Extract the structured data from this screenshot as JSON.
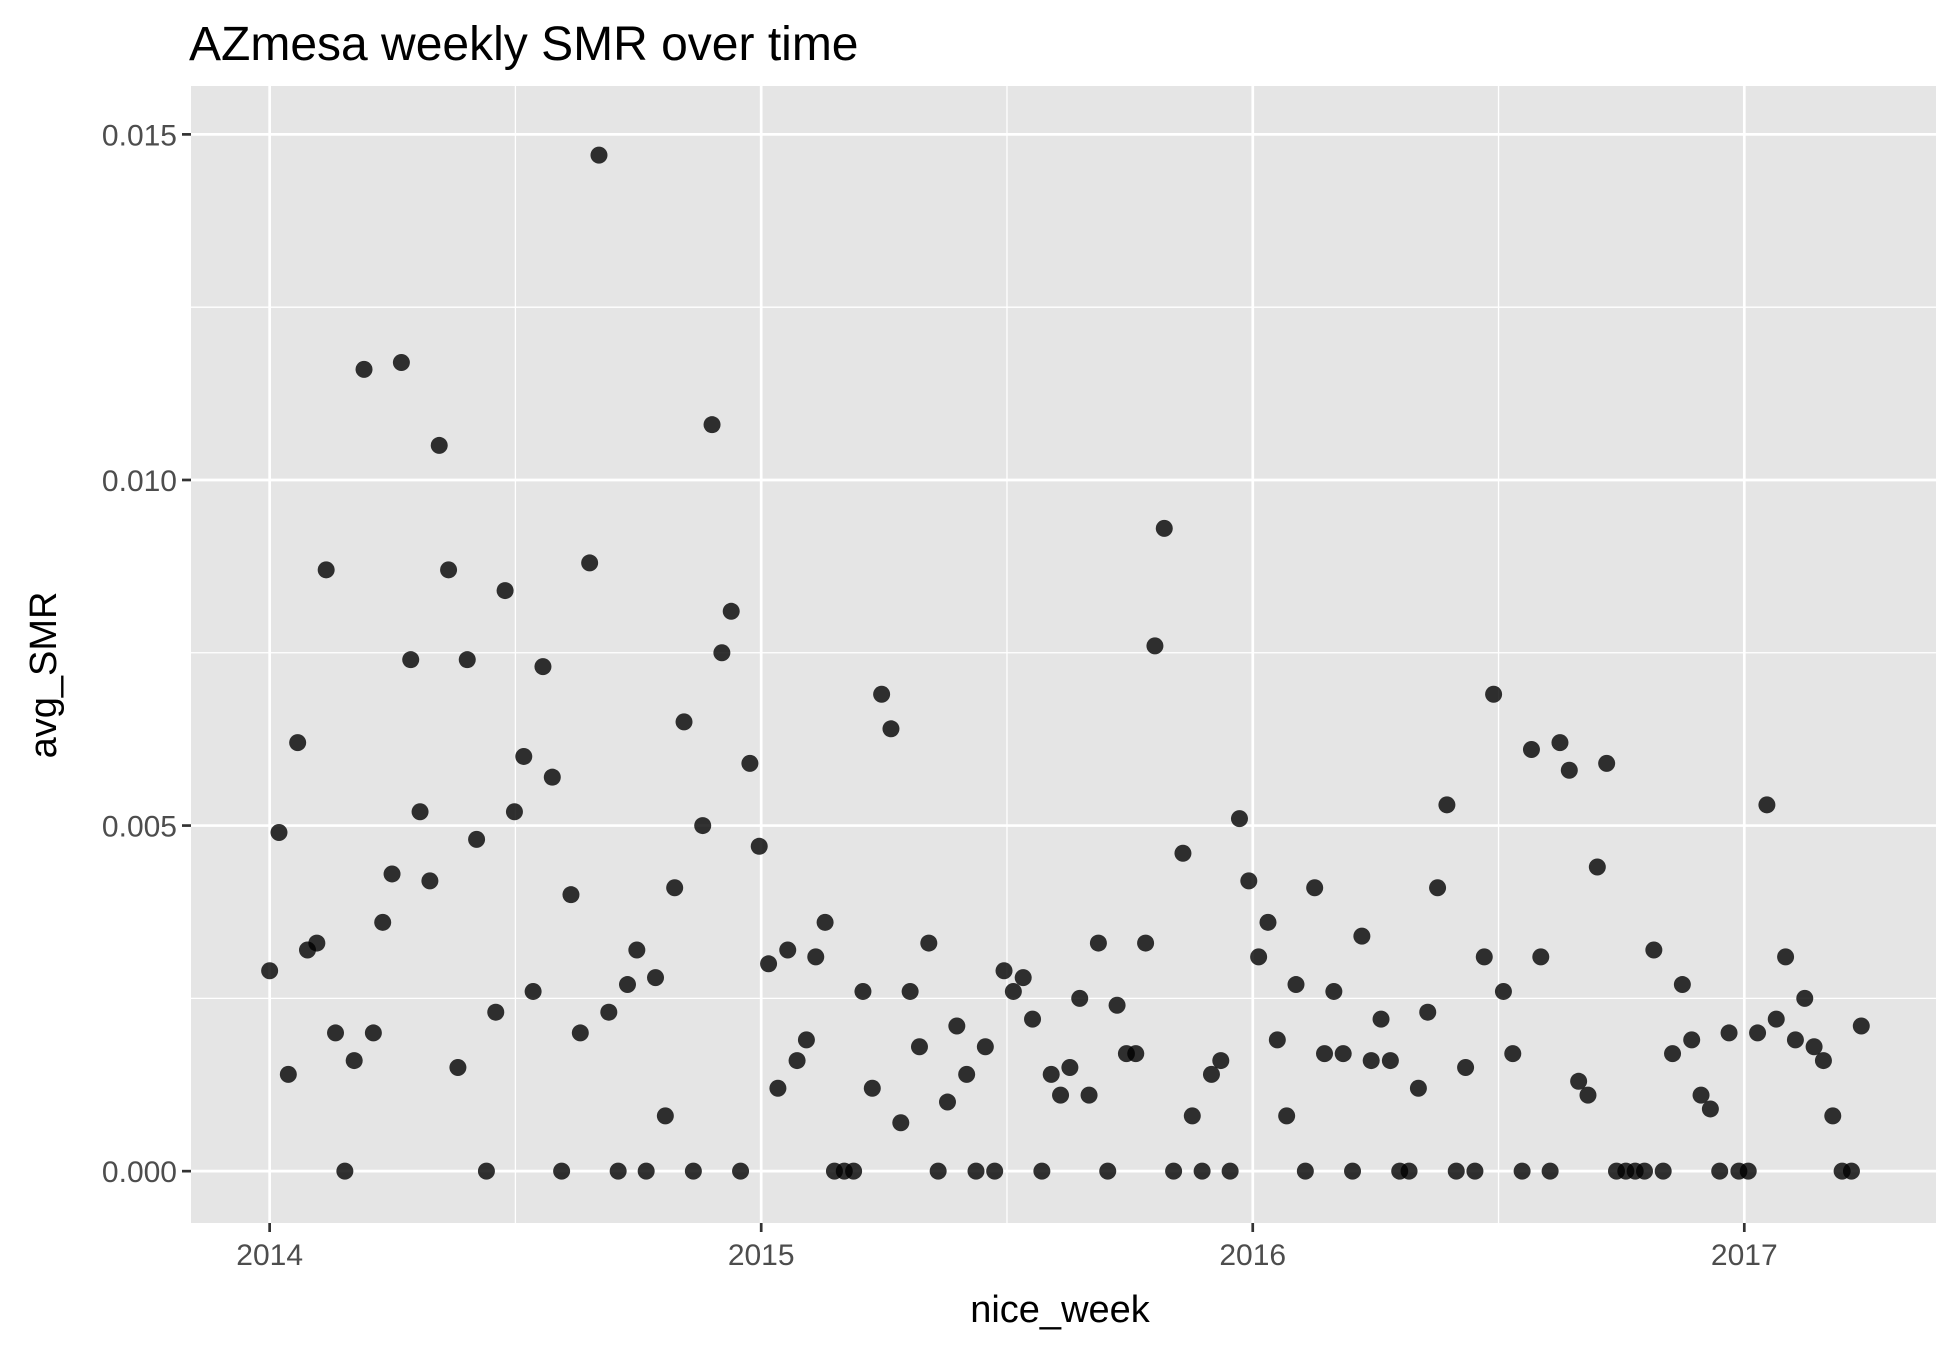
{
  "chart_data": {
    "type": "scatter",
    "title": "AZmesa weekly SMR over time",
    "xlabel": "nice_week",
    "ylabel": "avg_SMR",
    "x_ticks": [
      "2014",
      "2015",
      "2016",
      "2017"
    ],
    "y_ticks": [
      "0.000",
      "0.005",
      "0.010",
      "0.015"
    ],
    "xlim": [
      2013.84,
      2017.39
    ],
    "ylim": [
      -0.00075,
      0.0157
    ],
    "grid": true,
    "point_color": "#000000",
    "panel_background": "#e5e5e5",
    "points": [
      [
        2014.0,
        0.0029
      ],
      [
        2014.019,
        0.0049
      ],
      [
        2014.038,
        0.0014
      ],
      [
        2014.057,
        0.0062
      ],
      [
        2014.077,
        0.0032
      ],
      [
        2014.096,
        0.0033
      ],
      [
        2014.115,
        0.0087
      ],
      [
        2014.134,
        0.002
      ],
      [
        2014.153,
        0.0
      ],
      [
        2014.172,
        0.0016
      ],
      [
        2014.192,
        0.0116
      ],
      [
        2014.211,
        0.002
      ],
      [
        2014.23,
        0.0036
      ],
      [
        2014.249,
        0.0043
      ],
      [
        2014.268,
        0.0117
      ],
      [
        2014.287,
        0.0074
      ],
      [
        2014.306,
        0.0052
      ],
      [
        2014.326,
        0.0042
      ],
      [
        2014.345,
        0.0105
      ],
      [
        2014.364,
        0.0087
      ],
      [
        2014.383,
        0.0015
      ],
      [
        2014.402,
        0.0074
      ],
      [
        2014.421,
        0.0048
      ],
      [
        2014.441,
        0.0
      ],
      [
        2014.46,
        0.0023
      ],
      [
        2014.479,
        0.0084
      ],
      [
        2014.498,
        0.0052
      ],
      [
        2014.517,
        0.006
      ],
      [
        2014.536,
        0.0026
      ],
      [
        2014.556,
        0.0073
      ],
      [
        2014.575,
        0.0057
      ],
      [
        2014.594,
        0.0
      ],
      [
        2014.613,
        0.004
      ],
      [
        2014.632,
        0.002
      ],
      [
        2014.651,
        0.0088
      ],
      [
        2014.67,
        0.0147
      ],
      [
        2014.69,
        0.0023
      ],
      [
        2014.709,
        0.0
      ],
      [
        2014.728,
        0.0027
      ],
      [
        2014.747,
        0.0032
      ],
      [
        2014.766,
        0.0
      ],
      [
        2014.785,
        0.0028
      ],
      [
        2014.805,
        0.0008
      ],
      [
        2014.824,
        0.0041
      ],
      [
        2014.843,
        0.0065
      ],
      [
        2014.862,
        0.0
      ],
      [
        2014.881,
        0.005
      ],
      [
        2014.9,
        0.0108
      ],
      [
        2014.92,
        0.0075
      ],
      [
        2014.939,
        0.0081
      ],
      [
        2014.958,
        0.0
      ],
      [
        2014.977,
        0.0059
      ],
      [
        2014.996,
        0.0047
      ],
      [
        2015.015,
        0.003
      ],
      [
        2015.034,
        0.0012
      ],
      [
        2015.054,
        0.0032
      ],
      [
        2015.073,
        0.0016
      ],
      [
        2015.092,
        0.0019
      ],
      [
        2015.111,
        0.0031
      ],
      [
        2015.13,
        0.0036
      ],
      [
        2015.149,
        0.0
      ],
      [
        2015.169,
        0.0
      ],
      [
        2015.188,
        0.0
      ],
      [
        2015.207,
        0.0026
      ],
      [
        2015.226,
        0.0012
      ],
      [
        2015.245,
        0.0069
      ],
      [
        2015.264,
        0.0064
      ],
      [
        2015.284,
        0.0007
      ],
      [
        2015.303,
        0.0026
      ],
      [
        2015.322,
        0.0018
      ],
      [
        2015.341,
        0.0033
      ],
      [
        2015.36,
        0.0
      ],
      [
        2015.379,
        0.001
      ],
      [
        2015.398,
        0.0021
      ],
      [
        2015.418,
        0.0014
      ],
      [
        2015.437,
        0.0
      ],
      [
        2015.456,
        0.0018
      ],
      [
        2015.475,
        0.0
      ],
      [
        2015.494,
        0.0029
      ],
      [
        2015.513,
        0.0026
      ],
      [
        2015.533,
        0.0028
      ],
      [
        2015.552,
        0.0022
      ],
      [
        2015.571,
        0.0
      ],
      [
        2015.59,
        0.0014
      ],
      [
        2015.609,
        0.0011
      ],
      [
        2015.628,
        0.0015
      ],
      [
        2015.648,
        0.0025
      ],
      [
        2015.667,
        0.0011
      ],
      [
        2015.686,
        0.0033
      ],
      [
        2015.705,
        0.0
      ],
      [
        2015.724,
        0.0024
      ],
      [
        2015.743,
        0.0017
      ],
      [
        2015.762,
        0.0017
      ],
      [
        2015.782,
        0.0033
      ],
      [
        2015.801,
        0.0076
      ],
      [
        2015.82,
        0.0093
      ],
      [
        2015.839,
        0.0
      ],
      [
        2015.858,
        0.0046
      ],
      [
        2015.877,
        0.0008
      ],
      [
        2015.897,
        0.0
      ],
      [
        2015.916,
        0.0014
      ],
      [
        2015.935,
        0.0016
      ],
      [
        2015.954,
        0.0
      ],
      [
        2015.973,
        0.0051
      ],
      [
        2015.992,
        0.0042
      ],
      [
        2016.012,
        0.0031
      ],
      [
        2016.031,
        0.0036
      ],
      [
        2016.05,
        0.0019
      ],
      [
        2016.069,
        0.0008
      ],
      [
        2016.088,
        0.0027
      ],
      [
        2016.107,
        0.0
      ],
      [
        2016.126,
        0.0041
      ],
      [
        2016.146,
        0.0017
      ],
      [
        2016.165,
        0.0026
      ],
      [
        2016.184,
        0.0017
      ],
      [
        2016.203,
        0.0
      ],
      [
        2016.222,
        0.0034
      ],
      [
        2016.241,
        0.0016
      ],
      [
        2016.261,
        0.0022
      ],
      [
        2016.28,
        0.0016
      ],
      [
        2016.299,
        0.0
      ],
      [
        2016.318,
        0.0
      ],
      [
        2016.337,
        0.0012
      ],
      [
        2016.356,
        0.0023
      ],
      [
        2016.376,
        0.0041
      ],
      [
        2016.395,
        0.0053
      ],
      [
        2016.414,
        0.0
      ],
      [
        2016.433,
        0.0015
      ],
      [
        2016.452,
        0.0
      ],
      [
        2016.471,
        0.0031
      ],
      [
        2016.49,
        0.0069
      ],
      [
        2016.51,
        0.0026
      ],
      [
        2016.529,
        0.0017
      ],
      [
        2016.548,
        0.0
      ],
      [
        2016.567,
        0.0061
      ],
      [
        2016.586,
        0.0031
      ],
      [
        2016.605,
        0.0
      ],
      [
        2016.625,
        0.0062
      ],
      [
        2016.644,
        0.0058
      ],
      [
        2016.663,
        0.0013
      ],
      [
        2016.682,
        0.0011
      ],
      [
        2016.701,
        0.0044
      ],
      [
        2016.72,
        0.0059
      ],
      [
        2016.74,
        0.0
      ],
      [
        2016.759,
        0.0
      ],
      [
        2016.778,
        0.0
      ],
      [
        2016.797,
        0.0
      ],
      [
        2016.816,
        0.0032
      ],
      [
        2016.835,
        0.0
      ],
      [
        2016.854,
        0.0017
      ],
      [
        2016.874,
        0.0027
      ],
      [
        2016.893,
        0.0019
      ],
      [
        2016.912,
        0.0011
      ],
      [
        2016.931,
        0.0009
      ],
      [
        2016.95,
        0.0
      ],
      [
        2016.969,
        0.002
      ],
      [
        2016.989,
        0.0
      ],
      [
        2017.008,
        0.0
      ],
      [
        2017.027,
        0.002
      ],
      [
        2017.046,
        0.0053
      ],
      [
        2017.065,
        0.0022
      ],
      [
        2017.084,
        0.0031
      ],
      [
        2017.104,
        0.0019
      ],
      [
        2017.123,
        0.0025
      ],
      [
        2017.142,
        0.0018
      ],
      [
        2017.161,
        0.0016
      ],
      [
        2017.18,
        0.0008
      ],
      [
        2017.199,
        0.0
      ],
      [
        2017.218,
        0.0
      ],
      [
        2017.238,
        0.0021
      ]
    ]
  }
}
